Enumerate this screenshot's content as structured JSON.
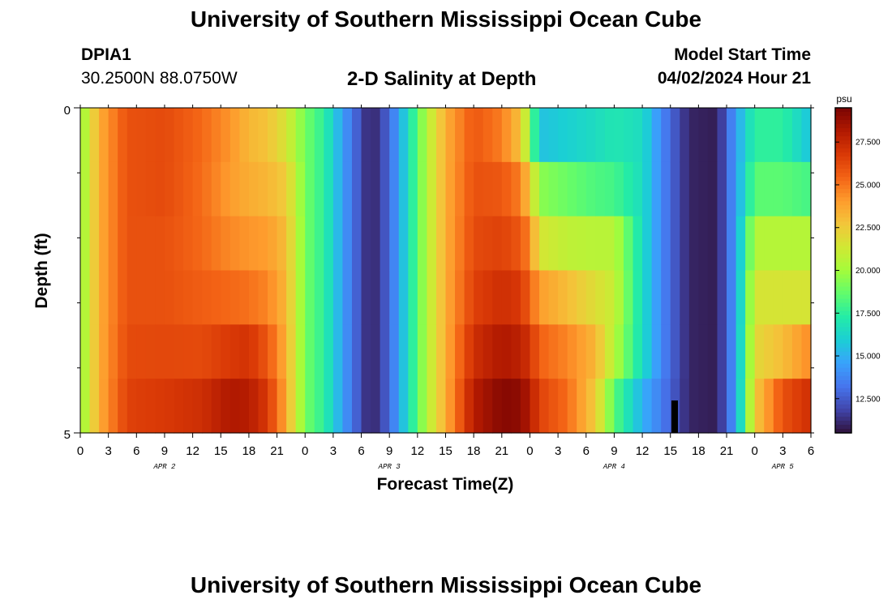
{
  "header": {
    "title": "University of Southern Mississippi Ocean Cube",
    "station_id": "DPIA1",
    "coords": "30.2500N  88.0750W",
    "plot_title": "2-D Salinity at Depth",
    "model_start_label": "Model Start Time",
    "model_start_value": "04/02/2024 Hour 21"
  },
  "footer": {
    "title": "University of Southern Mississippi Ocean Cube"
  },
  "chart_data": {
    "type": "heatmap",
    "title": "2-D Salinity at Depth",
    "xlabel": "Forecast Time(Z)",
    "ylabel": "Depth (ft)",
    "x_tick_labels": [
      "0",
      "3",
      "6",
      "9",
      "12",
      "15",
      "18",
      "21",
      "0",
      "3",
      "6",
      "9",
      "12",
      "15",
      "18",
      "21",
      "0",
      "3",
      "6",
      "9",
      "12",
      "15",
      "18",
      "21",
      "0",
      "3",
      "6"
    ],
    "date_labels": [
      {
        "label": "APR 2",
        "at_hour": 9
      },
      {
        "label": "APR 3",
        "at_hour": 33
      },
      {
        "label": "APR 4",
        "at_hour": 57
      },
      {
        "label": "APR 5",
        "at_hour": 75
      }
    ],
    "x_range_hours": [
      0,
      78
    ],
    "y_tick_labels": [
      "0",
      "5"
    ],
    "ylim": [
      0,
      5
    ],
    "depths_ft": [
      0,
      1,
      2,
      3,
      4,
      5
    ],
    "colorbar": {
      "unit": "psu",
      "range": [
        10.5,
        29.5
      ],
      "tick_labels": [
        "12.500",
        "15.000",
        "17.500",
        "20.000",
        "22.500",
        "25.000",
        "27.500"
      ],
      "tick_values": [
        12.5,
        15,
        17.5,
        20,
        22.5,
        25,
        27.5
      ],
      "colors": [
        "#30123b",
        "#4145ab",
        "#4675ed",
        "#39a2fc",
        "#1bcfd4",
        "#24eca6",
        "#61fc6c",
        "#a4fc3b",
        "#d1e834",
        "#f3c63a",
        "#fe9b2d",
        "#f36315",
        "#d93806",
        "#b11901",
        "#7a0403"
      ]
    },
    "profiles": [
      {
        "hour": 0,
        "values": [
          19.5,
          19.5,
          19.5,
          19.5,
          19.5,
          19.5
        ]
      },
      {
        "hour": 2,
        "values": [
          23.5,
          23.5,
          23.5,
          23.5,
          23.5,
          23.5
        ]
      },
      {
        "hour": 5,
        "values": [
          26.0,
          26.0,
          26.0,
          26.0,
          26.2,
          26.5
        ]
      },
      {
        "hour": 9,
        "values": [
          26.2,
          26.2,
          26.0,
          26.0,
          26.3,
          26.8
        ]
      },
      {
        "hour": 13,
        "values": [
          25.3,
          25.2,
          25.3,
          25.6,
          26.2,
          27.2
        ]
      },
      {
        "hour": 16,
        "values": [
          24.2,
          24.0,
          24.5,
          25.3,
          26.8,
          28.2
        ]
      },
      {
        "hour": 18,
        "values": [
          23.2,
          23.5,
          24.2,
          25.1,
          27.0,
          28.0
        ]
      },
      {
        "hour": 20,
        "values": [
          22.8,
          23.2,
          24.0,
          24.6,
          25.8,
          26.8
        ]
      },
      {
        "hour": 22,
        "values": [
          21.5,
          22.5,
          23.0,
          23.2,
          23.4,
          23.6
        ]
      },
      {
        "hour": 24,
        "values": [
          19.0,
          19.0,
          19.0,
          19.0,
          19.0,
          19.0
        ]
      },
      {
        "hour": 26,
        "values": [
          17.5,
          17.5,
          17.5,
          17.5,
          17.5,
          17.5
        ]
      },
      {
        "hour": 28,
        "values": [
          14.5,
          14.5,
          14.5,
          14.5,
          14.5,
          14.5
        ]
      },
      {
        "hour": 31,
        "values": [
          10.8,
          10.8,
          10.8,
          10.8,
          10.8,
          10.8
        ]
      },
      {
        "hour": 33,
        "values": [
          12.8,
          12.8,
          12.8,
          12.8,
          12.8,
          12.8
        ]
      },
      {
        "hour": 35,
        "values": [
          16.5,
          16.5,
          16.5,
          16.5,
          16.5,
          16.5
        ]
      },
      {
        "hour": 37,
        "values": [
          20.5,
          20.5,
          20.5,
          20.5,
          20.5,
          20.5
        ]
      },
      {
        "hour": 39,
        "values": [
          23.5,
          23.5,
          23.5,
          23.5,
          23.5,
          23.5
        ]
      },
      {
        "hour": 42,
        "values": [
          25.8,
          26.0,
          26.2,
          26.5,
          27.2,
          28.0
        ]
      },
      {
        "hour": 45,
        "values": [
          24.8,
          25.8,
          26.5,
          27.2,
          28.2,
          29.2
        ]
      },
      {
        "hour": 47,
        "values": [
          22.8,
          24.8,
          25.8,
          26.8,
          27.8,
          29.0
        ]
      },
      {
        "hour": 48,
        "values": [
          19.5,
          22.5,
          24.5,
          25.5,
          27.0,
          28.0
        ]
      },
      {
        "hour": 49,
        "values": [
          15.5,
          19.5,
          21.5,
          24.0,
          25.5,
          26.5
        ]
      },
      {
        "hour": 52,
        "values": [
          16.0,
          18.8,
          20.8,
          23.0,
          24.6,
          25.2
        ]
      },
      {
        "hour": 55,
        "values": [
          16.5,
          18.2,
          20.6,
          21.8,
          23.2,
          22.5
        ]
      },
      {
        "hour": 57,
        "values": [
          17.0,
          18.0,
          20.6,
          21.0,
          20.5,
          18.5
        ]
      },
      {
        "hour": 60,
        "values": [
          16.5,
          16.5,
          16.5,
          16.5,
          16.5,
          15.0
        ]
      },
      {
        "hour": 62,
        "values": [
          13.8,
          13.8,
          13.8,
          13.8,
          13.8,
          13.5
        ]
      },
      {
        "hour": 65,
        "values": [
          11.0,
          11.0,
          11.0,
          11.0,
          11.0,
          11.0
        ]
      },
      {
        "hour": 68,
        "values": [
          10.8,
          10.8,
          10.8,
          10.8,
          10.8,
          10.8
        ]
      },
      {
        "hour": 70,
        "values": [
          14.5,
          14.5,
          14.5,
          14.5,
          14.5,
          14.5
        ]
      },
      {
        "hour": 72,
        "values": [
          17.5,
          18.5,
          20.5,
          21.5,
          22.0,
          22.5
        ]
      },
      {
        "hour": 75,
        "values": [
          17.5,
          18.5,
          20.5,
          21.5,
          23.0,
          26.0
        ]
      },
      {
        "hour": 78,
        "values": [
          15.5,
          18.0,
          20.5,
          21.5,
          24.5,
          27.2
        ]
      }
    ]
  }
}
